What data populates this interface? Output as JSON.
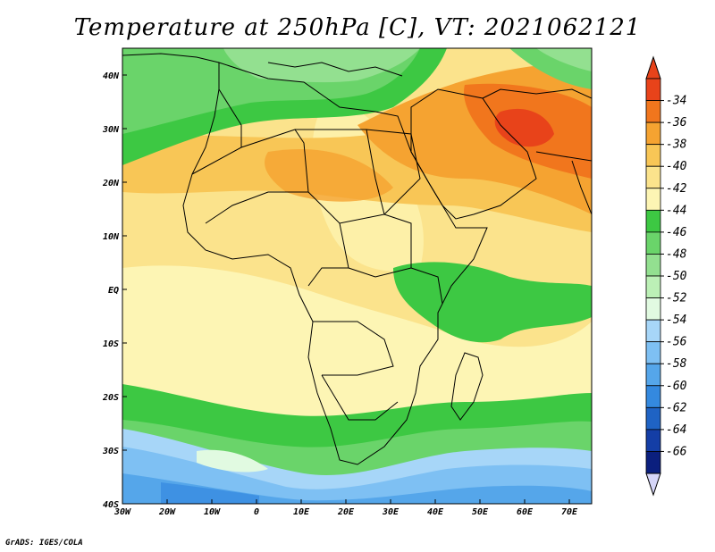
{
  "title": "Temperature at 250hPa [C], VT: 2021062121",
  "credit": "GrADS: IGES/COLA",
  "map": {
    "lon_ticks": [
      "30W",
      "20W",
      "10W",
      "0",
      "10E",
      "20E",
      "30E",
      "40E",
      "50E",
      "60E",
      "70E"
    ],
    "lat_ticks": [
      "40N",
      "30N",
      "20N",
      "10N",
      "EQ",
      "10S",
      "20S",
      "30S",
      "40S"
    ],
    "lon_range": [
      -30,
      75
    ],
    "lat_range": [
      -40,
      45
    ]
  },
  "colorbar": {
    "labels": [
      "-34",
      "-36",
      "-38",
      "-40",
      "-42",
      "-44",
      "-46",
      "-48",
      "-50",
      "-52",
      "-54",
      "-56",
      "-58",
      "-60",
      "-62",
      "-64",
      "-66"
    ],
    "colors": [
      "#e8431a",
      "#f1761d",
      "#f5a331",
      "#f8c656",
      "#fbe38c",
      "#fdf5b4",
      "#3dc843",
      "#6ad46a",
      "#93e090",
      "#bcf0b6",
      "#e1fae1",
      "#a7d6f8",
      "#7ec0f3",
      "#55a6ea",
      "#3489df",
      "#1f63c4",
      "#143ea6",
      "#0b1f7e"
    ],
    "top_tip_color": "#e8431a",
    "bottom_tip_color": "#d6d6f8"
  }
}
